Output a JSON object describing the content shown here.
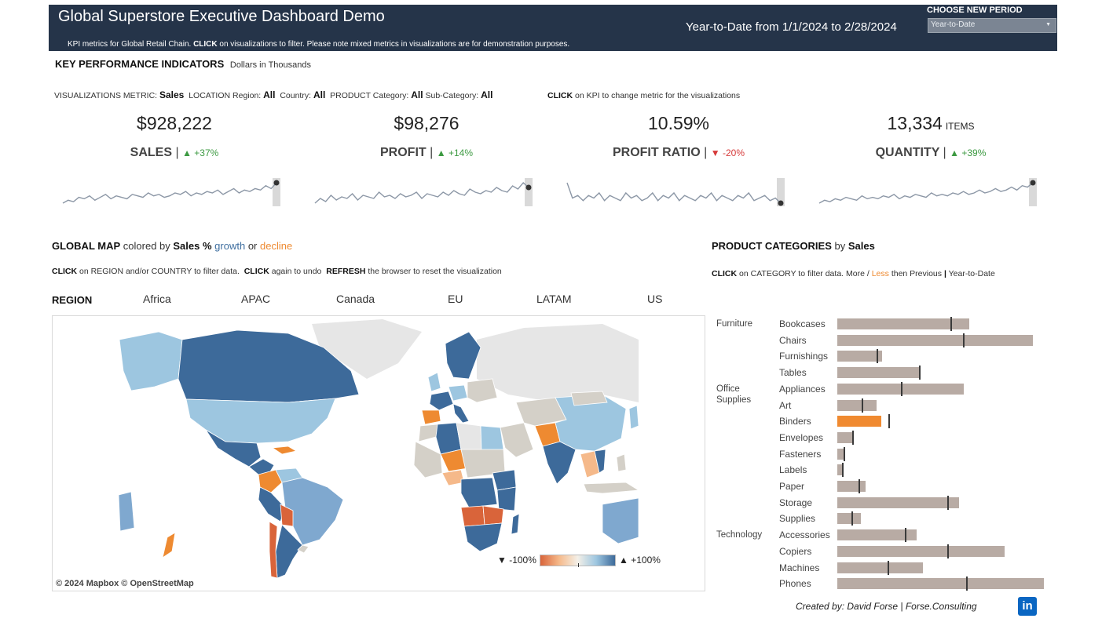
{
  "header": {
    "title": "Global Superstore Executive Dashboard Demo",
    "subtitle_plain_1": "KPI metrics for Global Retail Chain.",
    "subtitle_bold": "CLICK",
    "subtitle_plain_2": "on visualizations to filter.  Please note mixed metrics in visualizations are for demonstration purposes.",
    "period_text": "Year-to-Date from 1/1/2024 to 2/28/2024",
    "choose_label": "CHOOSE NEW PERIOD",
    "period_select_value": "Year-to-Date"
  },
  "kpi_section": {
    "heading": "KEY PERFORMANCE INDICATORS",
    "heading_sub": "Dollars in Thousands",
    "filters": {
      "metric_label": "VISUALIZATIONS METRIC:",
      "metric_value": "Sales",
      "location_label": "LOCATION Region:",
      "region_value": "All",
      "country_label": "Country:",
      "country_value": "All",
      "product_label": "PRODUCT Category:",
      "category_value": "All",
      "subcategory_label": "Sub-Category:",
      "subcategory_value": "All"
    },
    "click_kpi_bold": "CLICK",
    "click_kpi_text": "on KPI to change metric for the visualizations",
    "kpis": [
      {
        "value": "$928,222",
        "unit": "",
        "label": "SALES",
        "arrow": "▲",
        "delta": "+37%",
        "trend": "up",
        "spark": [
          10,
          12,
          11,
          14,
          13,
          15,
          12,
          14,
          16,
          13,
          15,
          14,
          13,
          16,
          15,
          14,
          17,
          15,
          16,
          14,
          15,
          17,
          16,
          18,
          15,
          17,
          16,
          18,
          17,
          19,
          16,
          18,
          20,
          17,
          19,
          18,
          20,
          19,
          22,
          20,
          24
        ]
      },
      {
        "value": "$98,276",
        "unit": "",
        "label": "PROFIT",
        "arrow": "▲",
        "delta": "+14%",
        "trend": "up",
        "spark": [
          10,
          13,
          11,
          15,
          12,
          14,
          13,
          16,
          12,
          15,
          14,
          13,
          17,
          14,
          15,
          13,
          16,
          14,
          15,
          17,
          13,
          16,
          15,
          14,
          17,
          15,
          18,
          16,
          15,
          19,
          17,
          16,
          18,
          17,
          20,
          18,
          17,
          21,
          19,
          23,
          20
        ]
      },
      {
        "value": "10.59%",
        "unit": "",
        "label": "PROFIT RATIO",
        "arrow": "▼",
        "delta": "-20%",
        "trend": "down",
        "spark": [
          22,
          16,
          17,
          15,
          17,
          16,
          18,
          15,
          17,
          16,
          15,
          18,
          16,
          17,
          15,
          16,
          18,
          15,
          17,
          16,
          18,
          15,
          17,
          16,
          15,
          17,
          16,
          18,
          15,
          17,
          16,
          15,
          17,
          16,
          18,
          15,
          16,
          17,
          15,
          16,
          14
        ]
      },
      {
        "value": "13,334",
        "unit": "ITEMS",
        "label": "QUANTITY",
        "arrow": "▲",
        "delta": "+39%",
        "trend": "up",
        "spark": [
          10,
          12,
          11,
          13,
          12,
          14,
          13,
          12,
          15,
          13,
          14,
          13,
          15,
          14,
          16,
          13,
          15,
          14,
          16,
          15,
          14,
          17,
          15,
          16,
          15,
          17,
          16,
          18,
          16,
          17,
          19,
          17,
          18,
          20,
          18,
          19,
          21,
          19,
          22,
          21,
          24
        ]
      }
    ]
  },
  "map_section": {
    "heading_bold": "GLOBAL MAP",
    "heading_mid": "colored by",
    "heading_metric": "Sales %",
    "heading_growth": "growth",
    "heading_or": "or",
    "heading_decline": "decline",
    "instr_bold_1": "CLICK",
    "instr_1": "on REGION and/or COUNTRY to filter data.",
    "instr_bold_2": "CLICK",
    "instr_2": "again to undo",
    "instr_bold_3": "REFRESH",
    "instr_3": "the browser to reset the visualization",
    "region_label": "REGION",
    "regions": [
      "Africa",
      "APAC",
      "Canada",
      "EU",
      "LATAM",
      "US"
    ],
    "legend_min": "▼ -100%",
    "legend_max": "▲ +100%",
    "attribution": "© 2024 Mapbox  © OpenStreetMap",
    "colors": {
      "growth_dark": "#3d6a9a",
      "growth_light": "#9dc6e0",
      "neutral": "#d4d0c8",
      "decline": "#ee8a31",
      "decline_dark": "#d9643a",
      "no_data": "#e6e6e6"
    }
  },
  "category_section": {
    "heading_bold": "PRODUCT CATEGORIES",
    "heading_mid": "by",
    "heading_metric": "Sales",
    "instr_bold": "CLICK",
    "instr_text": "on CATEGORY to filter data.",
    "more_label": "More",
    "slash": "/",
    "less_label": "Less",
    "then_text": "then Previous",
    "pipe": "|",
    "ytd_text": "Year-to-Date",
    "groups": [
      {
        "name": "Furniture",
        "items": [
          {
            "name": "Bookcases",
            "value": 168,
            "prev": 145
          },
          {
            "name": "Chairs",
            "value": 249,
            "prev": 161
          },
          {
            "name": "Furnishings",
            "value": 57,
            "prev": 51
          },
          {
            "name": "Tables",
            "value": 106,
            "prev": 105
          }
        ]
      },
      {
        "name": "Office Supplies",
        "items": [
          {
            "name": "Appliances",
            "value": 161,
            "prev": 82
          },
          {
            "name": "Art",
            "value": 50,
            "prev": 32
          },
          {
            "name": "Binders",
            "value": 56,
            "prev": 66,
            "active": true
          },
          {
            "name": "Envelopes",
            "value": 21,
            "prev": 20
          },
          {
            "name": "Fasteners",
            "value": 10,
            "prev": 9
          },
          {
            "name": "Labels",
            "value": 8,
            "prev": 7
          },
          {
            "name": "Paper",
            "value": 36,
            "prev": 28
          },
          {
            "name": "Storage",
            "value": 155,
            "prev": 141
          },
          {
            "name": "Supplies",
            "value": 30,
            "prev": 19
          }
        ]
      },
      {
        "name": "Technology",
        "items": [
          {
            "name": "Accessories",
            "value": 101,
            "prev": 87
          },
          {
            "name": "Copiers",
            "value": 213,
            "prev": 141
          },
          {
            "name": "Machines",
            "value": 109,
            "prev": 65
          },
          {
            "name": "Phones",
            "value": 263,
            "prev": 165
          }
        ]
      }
    ]
  },
  "footer": {
    "credit": "Created by: David Forse | Forse.Consulting",
    "linkedin_glyph": "in"
  }
}
